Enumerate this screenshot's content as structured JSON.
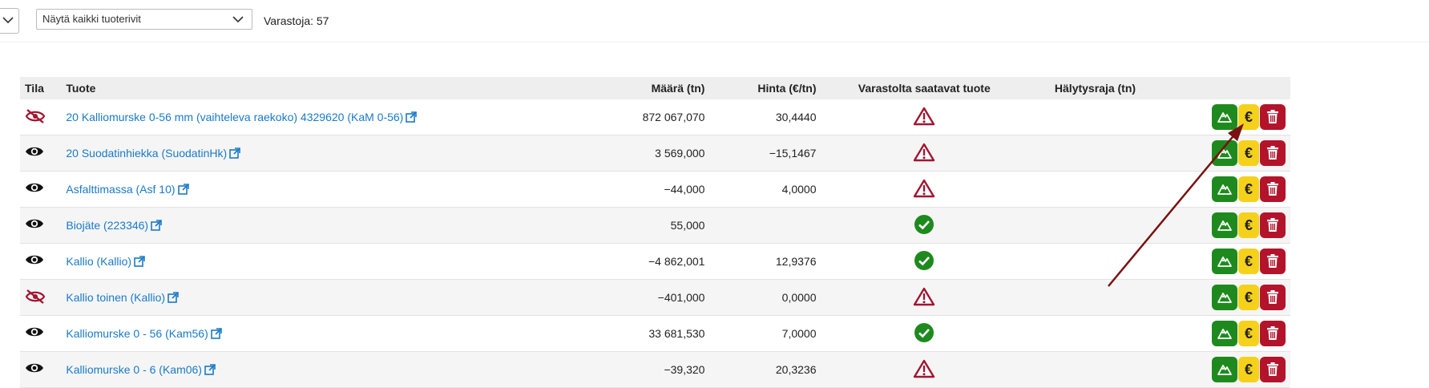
{
  "toolbar": {
    "filter_value": "Näytä kaikki tuoterivit",
    "stock_count": "Varastoja: 57"
  },
  "table": {
    "headers": {
      "status": "Tila",
      "product": "Tuote",
      "quantity": "Määrä (tn)",
      "price": "Hinta (€/tn)",
      "available": "Varastolta saatavat tuote",
      "alarm": "Hälytysraja (tn)"
    },
    "rows": [
      {
        "visible": false,
        "product": "20 Kalliomurske 0-56 mm (vaihteleva raekoko) 4329620 (KaM 0-56)",
        "quantity": "872 067,070",
        "price": "30,4440",
        "available": "warning"
      },
      {
        "visible": true,
        "product": "20 Suodatinhiekka (SuodatinHk)",
        "quantity": "3 569,000",
        "price": "−15,1467",
        "available": "warning"
      },
      {
        "visible": true,
        "product": "Asfalttimassa (Asf 10)",
        "quantity": "−44,000",
        "price": "4,0000",
        "available": "warning"
      },
      {
        "visible": true,
        "product": "Biojäte (223346)",
        "quantity": "55,000",
        "price": "",
        "available": "ok"
      },
      {
        "visible": true,
        "product": "Kallio (Kallio)",
        "quantity": "−4 862,001",
        "price": "12,9376",
        "available": "ok"
      },
      {
        "visible": false,
        "product": "Kallio toinen (Kallio)",
        "quantity": "−401,000",
        "price": "0,0000",
        "available": "warning"
      },
      {
        "visible": true,
        "product": "Kalliomurske 0 - 56 (Kam56)",
        "quantity": "33 681,530",
        "price": "7,0000",
        "available": "ok"
      },
      {
        "visible": true,
        "product": "Kalliomurske 0 - 6 (Kam06)",
        "quantity": "−39,320",
        "price": "20,3236",
        "available": "warning"
      }
    ]
  },
  "icons": {
    "visible": "eye-icon",
    "hidden": "eye-slash-icon",
    "warning": "warning-triangle-icon",
    "ok": "check-circle-icon",
    "external": "external-link-icon",
    "threshold": "mountain-icon",
    "price": "euro-icon",
    "delete": "trash-icon"
  },
  "colors": {
    "link": "#1a7ac7",
    "warning": "#a31530",
    "ok": "#1e8a1e",
    "green_button": "#1e8a1e",
    "yellow_button": "#f5d11b",
    "red_button": "#b3142b",
    "arrow": "#7a1010"
  }
}
